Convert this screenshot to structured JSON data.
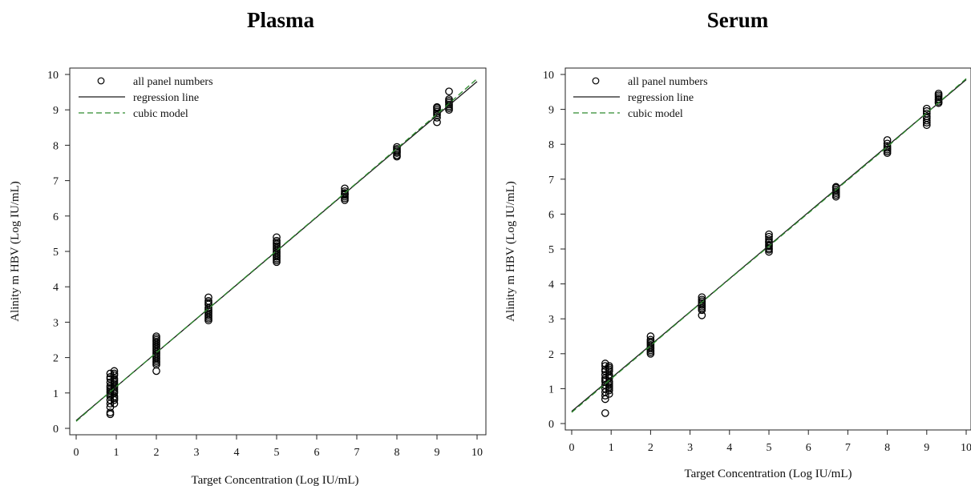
{
  "chart_data": [
    {
      "type": "scatter",
      "title": "Plasma",
      "xlabel": "Target Concentration (Log IU/mL)",
      "ylabel": "Alinity m HBV (Log IU/mL)",
      "xlim": [
        0,
        10
      ],
      "ylim": [
        0,
        10
      ],
      "x_ticks": [
        "0",
        "1",
        "2",
        "3",
        "4",
        "5",
        "6",
        "7",
        "8",
        "9",
        "10"
      ],
      "y_ticks": [
        "0",
        "1",
        "2",
        "3",
        "4",
        "5",
        "6",
        "7",
        "8",
        "9",
        "10"
      ],
      "grid": false,
      "legend_position": "top-left",
      "legend": [
        "all panel numbers",
        "regression line",
        "cubic model"
      ],
      "colors": {
        "regression": "#1a1a1a",
        "cubic": "#2e8b2e",
        "points": "#000000"
      },
      "series": [
        {
          "name": "all panel numbers",
          "x": [
            0.85,
            0.85,
            0.85,
            0.85,
            0.85,
            0.85,
            0.85,
            0.85,
            0.85,
            0.85,
            0.85,
            0.85,
            0.85,
            0.85,
            0.85,
            0.85,
            0.95,
            0.95,
            0.95,
            0.95,
            0.95,
            0.95,
            0.95,
            0.95,
            0.95,
            0.95,
            0.95,
            0.95,
            0.95,
            0.95,
            0.95,
            0.95,
            2,
            2,
            2,
            2,
            2,
            2,
            2,
            2,
            2,
            2,
            2,
            2,
            2,
            2,
            2,
            2,
            2,
            2,
            3.3,
            3.3,
            3.3,
            3.3,
            3.3,
            3.3,
            3.3,
            3.3,
            3.3,
            3.3,
            3.3,
            3.3,
            5,
            5,
            5,
            5,
            5,
            5,
            5,
            5,
            5,
            5,
            5,
            5,
            5,
            5,
            6.7,
            6.7,
            6.7,
            6.7,
            6.7,
            6.7,
            6.7,
            6.7,
            8,
            8,
            8,
            8,
            8,
            8,
            8,
            9,
            9,
            9,
            9,
            9,
            9,
            9,
            9,
            9.3,
            9.3,
            9.3,
            9.3,
            9.3,
            9.3,
            9.3,
            9.3
          ],
          "y": [
            0.4,
            0.45,
            0.6,
            0.7,
            0.8,
            0.9,
            0.95,
            1.0,
            1.05,
            1.1,
            1.15,
            1.2,
            1.3,
            1.4,
            1.45,
            1.55,
            0.7,
            0.8,
            0.85,
            0.9,
            1.0,
            1.05,
            1.1,
            1.15,
            1.2,
            1.25,
            1.3,
            1.35,
            1.4,
            1.5,
            1.55,
            1.62,
            1.62,
            1.8,
            1.9,
            1.95,
            2.0,
            2.05,
            2.1,
            2.15,
            2.2,
            2.25,
            2.3,
            2.35,
            2.4,
            2.45,
            2.5,
            2.55,
            2.6,
            1.85,
            3.05,
            3.1,
            3.15,
            3.2,
            3.25,
            3.3,
            3.35,
            3.4,
            3.5,
            3.55,
            3.6,
            3.7,
            4.7,
            4.75,
            4.8,
            4.85,
            4.9,
            4.95,
            5.0,
            5.05,
            5.1,
            5.15,
            5.2,
            5.25,
            5.3,
            5.4,
            6.45,
            6.5,
            6.55,
            6.6,
            6.62,
            6.65,
            6.7,
            6.78,
            7.68,
            7.72,
            7.78,
            7.82,
            7.86,
            7.9,
            7.95,
            8.65,
            8.78,
            8.85,
            8.9,
            8.95,
            9.0,
            9.05,
            9.08,
            9.0,
            9.05,
            9.1,
            9.15,
            9.2,
            9.25,
            9.3,
            9.52
          ]
        },
        {
          "name": "regression line",
          "x": [
            0,
            10
          ],
          "y": [
            0.22,
            9.8
          ]
        },
        {
          "name": "cubic model",
          "x": [
            0,
            1,
            2,
            3,
            4,
            5,
            6,
            7,
            8,
            9,
            10
          ],
          "y": [
            0.2,
            1.18,
            2.14,
            3.1,
            4.06,
            5.02,
            5.98,
            6.94,
            7.91,
            8.88,
            9.88
          ]
        }
      ]
    },
    {
      "type": "scatter",
      "title": "Serum",
      "xlabel": "Target Concentration (Log IU/mL)",
      "ylabel": "Alinity m HBV (Log IU/mL)",
      "xlim": [
        0,
        10
      ],
      "ylim": [
        0,
        10
      ],
      "x_ticks": [
        "0",
        "1",
        "2",
        "3",
        "4",
        "5",
        "6",
        "7",
        "8",
        "9",
        "10"
      ],
      "y_ticks": [
        "0",
        "1",
        "2",
        "3",
        "4",
        "5",
        "6",
        "7",
        "8",
        "9",
        "10"
      ],
      "grid": false,
      "legend_position": "top-left",
      "legend": [
        "all panel numbers",
        "regression line",
        "cubic model"
      ],
      "colors": {
        "regression": "#1a1a1a",
        "cubic": "#2e8b2e",
        "points": "#000000"
      },
      "series": [
        {
          "name": "all panel numbers",
          "x": [
            0.85,
            0.85,
            0.85,
            0.85,
            0.85,
            0.85,
            0.85,
            0.85,
            0.85,
            0.85,
            0.85,
            0.85,
            0.85,
            0.85,
            0.95,
            0.95,
            0.95,
            0.95,
            0.95,
            0.95,
            0.95,
            0.95,
            0.95,
            0.95,
            0.95,
            0.95,
            0.95,
            0.95,
            2,
            2,
            2,
            2,
            2,
            2,
            2,
            2,
            2,
            2,
            3.3,
            3.3,
            3.3,
            3.3,
            3.3,
            3.3,
            3.3,
            3.3,
            3.3,
            5,
            5,
            5,
            5,
            5,
            5,
            5,
            5,
            5,
            5,
            6.7,
            6.7,
            6.7,
            6.7,
            6.7,
            6.7,
            6.7,
            8,
            8,
            8,
            8,
            8,
            8,
            8,
            9,
            9,
            9,
            9,
            9,
            9,
            9,
            9,
            9.3,
            9.3,
            9.3,
            9.3,
            9.3,
            9.3,
            9.3
          ],
          "y": [
            0.3,
            0.7,
            0.8,
            0.9,
            1.0,
            1.1,
            1.2,
            1.25,
            1.3,
            1.4,
            1.5,
            1.55,
            1.65,
            1.72,
            0.85,
            0.95,
            1.0,
            1.05,
            1.1,
            1.15,
            1.2,
            1.3,
            1.35,
            1.4,
            1.5,
            1.55,
            1.6,
            1.65,
            2.0,
            2.05,
            2.1,
            2.15,
            2.2,
            2.25,
            2.3,
            2.35,
            2.4,
            2.5,
            3.1,
            3.25,
            3.3,
            3.35,
            3.4,
            3.45,
            3.5,
            3.55,
            3.62,
            4.92,
            4.98,
            5.02,
            5.08,
            5.12,
            5.18,
            5.22,
            5.28,
            5.35,
            5.42,
            6.5,
            6.55,
            6.6,
            6.65,
            6.7,
            6.75,
            6.78,
            7.75,
            7.8,
            7.85,
            7.9,
            7.95,
            8.02,
            8.12,
            8.55,
            8.62,
            8.68,
            8.75,
            8.8,
            8.88,
            8.95,
            9.02,
            9.18,
            9.22,
            9.27,
            9.3,
            9.35,
            9.4,
            9.45
          ]
        },
        {
          "name": "regression line",
          "x": [
            0,
            10
          ],
          "y": [
            0.35,
            9.85
          ]
        },
        {
          "name": "cubic model",
          "x": [
            0,
            1,
            2,
            3,
            4,
            5,
            6,
            7,
            8,
            9,
            10
          ],
          "y": [
            0.32,
            1.28,
            2.23,
            3.19,
            4.14,
            5.08,
            6.03,
            6.98,
            7.93,
            8.9,
            9.88
          ]
        }
      ]
    }
  ]
}
